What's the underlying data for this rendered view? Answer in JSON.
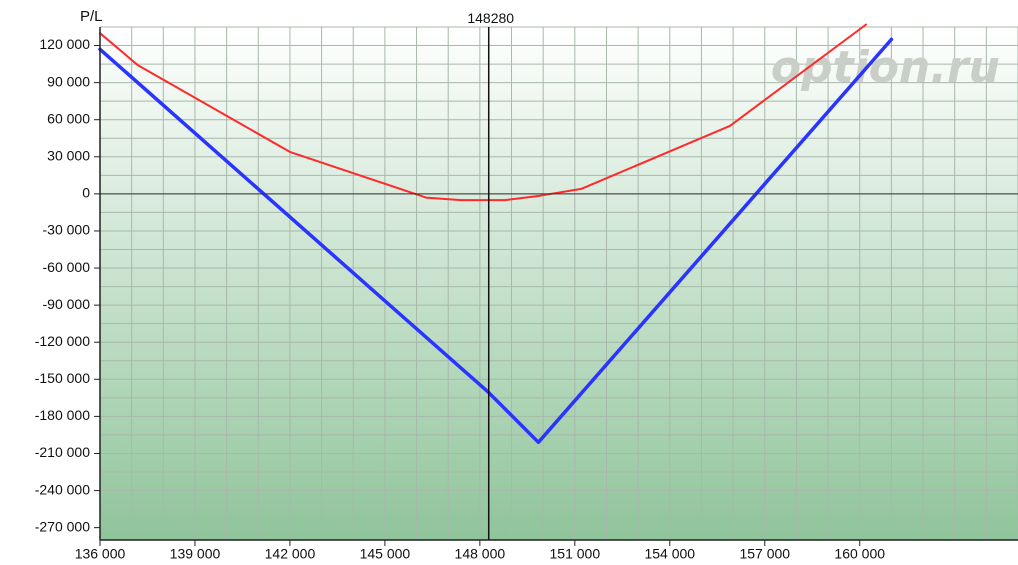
{
  "chart_data": {
    "type": "line",
    "ylabel": "P/L",
    "marker": {
      "label": "148280",
      "x": 148280
    },
    "watermark": "option.ru",
    "x_ticks": [
      {
        "value": 136000,
        "label": "136 000"
      },
      {
        "value": 139000,
        "label": "139 000"
      },
      {
        "value": 142000,
        "label": "142 000"
      },
      {
        "value": 145000,
        "label": "145 000"
      },
      {
        "value": 148000,
        "label": "148 000"
      },
      {
        "value": 151000,
        "label": "151 000"
      },
      {
        "value": 154000,
        "label": "154 000"
      },
      {
        "value": 157000,
        "label": "157 000"
      },
      {
        "value": 160000,
        "label": "160 000"
      }
    ],
    "y_ticks": [
      {
        "value": 120000,
        "label": "120 000"
      },
      {
        "value": 90000,
        "label": "90 000"
      },
      {
        "value": 60000,
        "label": "60 000"
      },
      {
        "value": 30000,
        "label": "30 000"
      },
      {
        "value": 0,
        "label": "0"
      },
      {
        "value": -30000,
        "label": "-30 000"
      },
      {
        "value": -60000,
        "label": "-60 000"
      },
      {
        "value": -90000,
        "label": "-90 000"
      },
      {
        "value": -120000,
        "label": "-120 000"
      },
      {
        "value": -150000,
        "label": "-150 000"
      },
      {
        "value": -180000,
        "label": "-180 000"
      },
      {
        "value": -210000,
        "label": "-210 000"
      },
      {
        "value": -240000,
        "label": "-240 000"
      },
      {
        "value": -270000,
        "label": "-270 000"
      }
    ],
    "xlim": [
      136000,
      165000
    ],
    "ylim": [
      -280000,
      135000
    ],
    "grid": true,
    "series": [
      {
        "color": "#ff2a2a",
        "points": [
          [
            136000,
            130000
          ],
          [
            137200,
            104000
          ],
          [
            142000,
            34000
          ],
          [
            146300,
            -3000
          ],
          [
            147400,
            -5000
          ],
          [
            148800,
            -5000
          ],
          [
            149900,
            -1500
          ],
          [
            151200,
            4000
          ],
          [
            155900,
            55000
          ],
          [
            160200,
            137000
          ]
        ]
      },
      {
        "color": "#2a34ff",
        "points": [
          [
            136000,
            117000
          ],
          [
            148250,
            -160000
          ],
          [
            149850,
            -201000
          ],
          [
            161000,
            125000
          ]
        ]
      }
    ]
  }
}
